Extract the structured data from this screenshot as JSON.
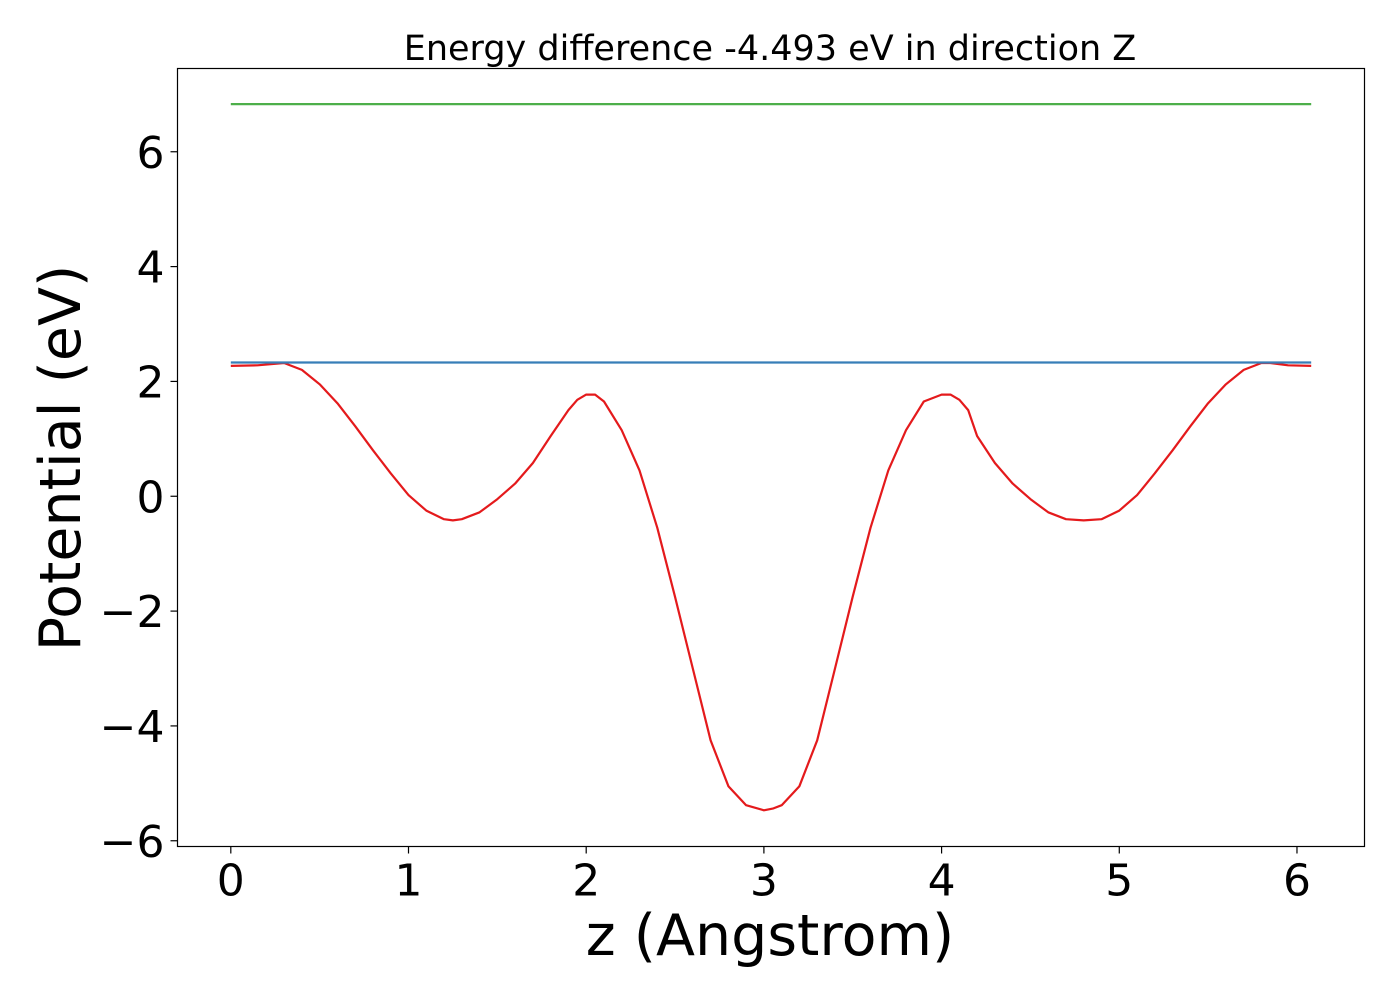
{
  "chart_data": {
    "type": "line",
    "title": "Energy difference -4.493 eV in direction Z",
    "xlabel": "z (Angstrom)",
    "ylabel": "Potential (eV)",
    "xlim": [
      -0.3,
      6.38
    ],
    "ylim": [
      -6.1,
      7.45
    ],
    "xticks": [
      0,
      1,
      2,
      3,
      4,
      5,
      6
    ],
    "yticks": [
      -6,
      -4,
      -2,
      0,
      2,
      4,
      6
    ],
    "xtick_labels": [
      "0",
      "1",
      "2",
      "3",
      "4",
      "5",
      "6"
    ],
    "ytick_labels": [
      "−6",
      "−4",
      "−2",
      "0",
      "2",
      "4",
      "6"
    ],
    "grid": false,
    "series": [
      {
        "color": "#e41a1c",
        "x": [
          0.0,
          0.15,
          0.3,
          0.4,
          0.5,
          0.6,
          0.7,
          0.8,
          0.9,
          1.0,
          1.1,
          1.2,
          1.25,
          1.3,
          1.4,
          1.5,
          1.6,
          1.7,
          1.8,
          1.9,
          1.95,
          2.0,
          2.05,
          2.1,
          2.2,
          2.3,
          2.4,
          2.5,
          2.6,
          2.7,
          2.8,
          2.9,
          3.0,
          3.05,
          3.1,
          3.2,
          3.3,
          3.4,
          3.5,
          3.6,
          3.7,
          3.8,
          3.9,
          4.0,
          4.05,
          4.1,
          4.15,
          4.2,
          4.3,
          4.4,
          4.5,
          4.6,
          4.7,
          4.8,
          4.9,
          5.0,
          5.1,
          5.2,
          5.3,
          5.4,
          5.5,
          5.6,
          5.7,
          5.8,
          5.85,
          5.95,
          6.08
        ],
        "y": [
          2.27,
          2.28,
          2.32,
          2.2,
          1.95,
          1.62,
          1.22,
          0.8,
          0.4,
          0.02,
          -0.25,
          -0.4,
          -0.42,
          -0.4,
          -0.28,
          -0.05,
          0.22,
          0.58,
          1.05,
          1.5,
          1.68,
          1.77,
          1.77,
          1.65,
          1.15,
          0.45,
          -0.55,
          -1.75,
          -3.0,
          -4.25,
          -5.05,
          -5.38,
          -5.47,
          -5.44,
          -5.38,
          -5.05,
          -4.25,
          -3.0,
          -1.75,
          -0.55,
          0.45,
          1.15,
          1.65,
          1.77,
          1.77,
          1.68,
          1.5,
          1.05,
          0.58,
          0.22,
          -0.05,
          -0.28,
          -0.4,
          -0.42,
          -0.4,
          -0.25,
          0.02,
          0.4,
          0.8,
          1.22,
          1.62,
          1.95,
          2.2,
          2.32,
          2.32,
          2.28,
          2.27
        ]
      },
      {
        "color": "#4daf4a",
        "x": [
          0.0,
          6.08
        ],
        "y": [
          6.83,
          6.83
        ]
      },
      {
        "color": "#377eb8",
        "x": [
          0.0,
          6.08
        ],
        "y": [
          2.33,
          2.33
        ]
      }
    ]
  }
}
